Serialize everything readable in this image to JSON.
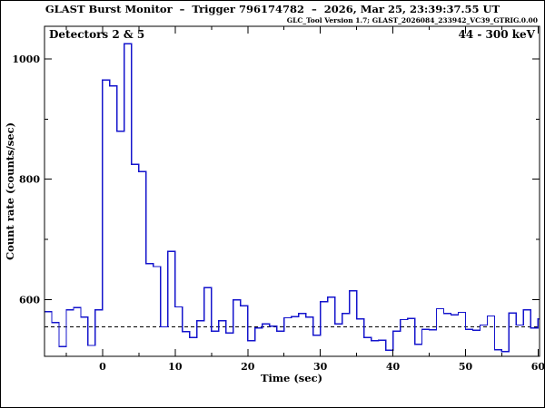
{
  "header": {
    "title": "GLAST Burst Monitor  –  Trigger 796174782  –  2026, Mar 25, 23:39:37.55 UT",
    "subtitle": "GLC_Tool Version 1.7; GLAST_2026084_233942_VC39_GTRIG.0.00"
  },
  "plot": {
    "detectors_label": "Detectors 2 & 5",
    "energy_range": "44 - 300 keV"
  },
  "colors": {
    "trace": "#1414cc",
    "frame": "#000000",
    "background": "#ffffff",
    "dashed_line": "#000000"
  },
  "chart_data": {
    "type": "line",
    "subtype": "step-histogram",
    "title": "GLAST Burst Monitor  –  Trigger 796174782  –  2026, Mar 25, 23:39:37.55 UT",
    "xlabel": "Time (sec)",
    "ylabel": "Count rate (counts/sec)",
    "xlim": [
      -8,
      60.2
    ],
    "ylim": [
      506,
      1054
    ],
    "xticks_major": [
      0,
      10,
      20,
      30,
      40,
      50,
      60
    ],
    "xticks_minor": [
      -5,
      5,
      15,
      25,
      35,
      45,
      55
    ],
    "yticks_major": [
      600,
      800,
      1000
    ],
    "yticks_minor": [
      700,
      900
    ],
    "grid": false,
    "legend": null,
    "background_level_dashed": 555,
    "bin_width_sec": 1,
    "t_start": -8,
    "counts": [
      580,
      562,
      522,
      583,
      587,
      571,
      524,
      583,
      965,
      955,
      880,
      1025,
      825,
      813,
      660,
      655,
      555,
      680,
      588,
      547,
      537,
      565,
      620,
      548,
      565,
      545,
      600,
      590,
      532,
      553,
      560,
      556,
      548,
      570,
      572,
      577,
      571,
      541,
      597,
      604,
      560,
      577,
      615,
      568,
      537,
      532,
      533,
      516,
      548,
      567,
      569,
      526,
      551,
      550,
      585,
      577,
      575,
      579,
      551,
      549,
      558,
      573,
      517,
      514,
      578,
      558,
      583,
      553,
      568
    ]
  }
}
